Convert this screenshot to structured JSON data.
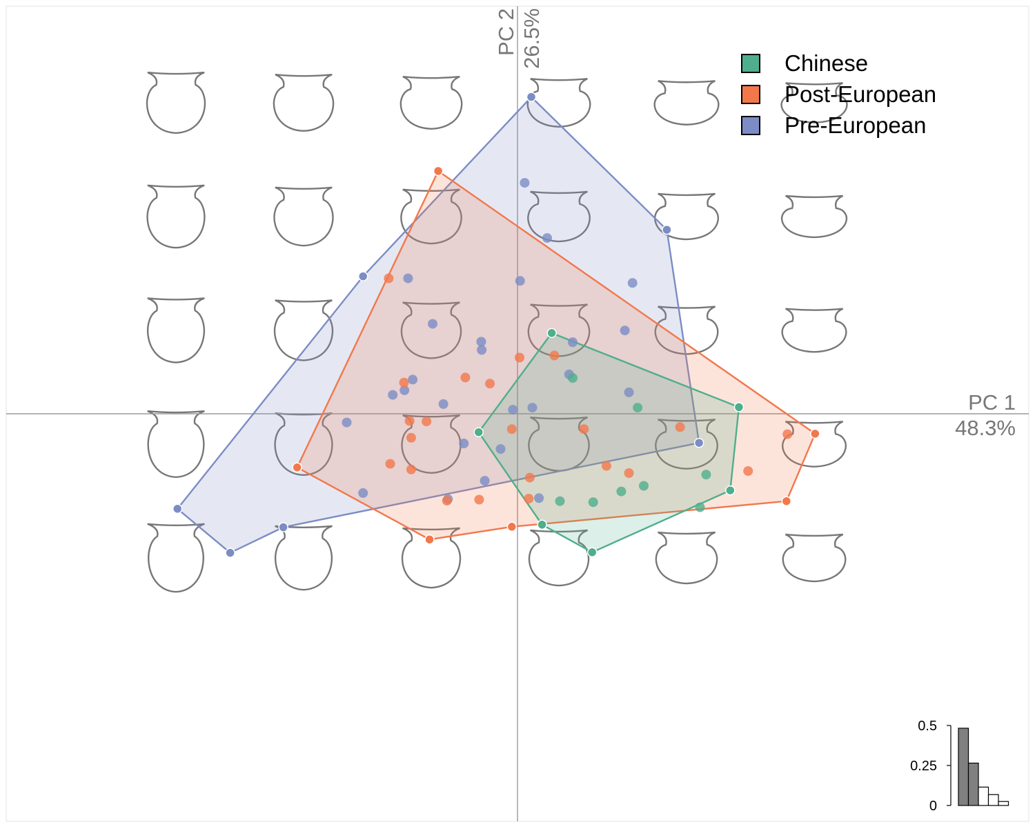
{
  "chart_data": {
    "type": "scatter",
    "title": "",
    "axes": {
      "x": {
        "label": "PC 1",
        "percent": "48.3%",
        "range": [
          -1.0,
          1.0
        ]
      },
      "y": {
        "label": "PC 2",
        "percent": "26.5%",
        "range": [
          -0.8,
          0.8
        ]
      }
    },
    "grid": false,
    "legend_position": "top-right",
    "colors": {
      "Chinese": "#4fae8c",
      "Post-European": "#f2784b",
      "Pre-European": "#7c8cc4",
      "axis": "#999999",
      "outline": "#777777"
    },
    "series": [
      {
        "name": "Chinese",
        "points": [
          [
            -0.076,
            -0.036
          ],
          [
            0.067,
            0.158
          ],
          [
            0.108,
            0.07
          ],
          [
            0.235,
            0.012
          ],
          [
            0.433,
            0.013
          ],
          [
            0.369,
            -0.119
          ],
          [
            0.416,
            -0.15
          ],
          [
            0.247,
            -0.141
          ],
          [
            0.203,
            -0.152
          ],
          [
            0.148,
            -0.173
          ],
          [
            0.083,
            -0.171
          ],
          [
            0.048,
            -0.217
          ],
          [
            0.146,
            -0.271
          ],
          [
            0.357,
            -0.183
          ]
        ],
        "hull": [
          [
            -0.076,
            -0.036
          ],
          [
            0.067,
            0.158
          ],
          [
            0.433,
            0.013
          ],
          [
            0.416,
            -0.15
          ],
          [
            0.146,
            -0.271
          ],
          [
            0.048,
            -0.217
          ]
        ]
      },
      {
        "name": "Post-European",
        "points": [
          [
            -0.155,
            0.475
          ],
          [
            -0.252,
            0.265
          ],
          [
            -0.222,
            0.061
          ],
          [
            -0.102,
            0.071
          ],
          [
            -0.054,
            0.059
          ],
          [
            0.004,
            0.11
          ],
          [
            0.072,
            0.114
          ],
          [
            -0.178,
            -0.015
          ],
          [
            -0.211,
            -0.014
          ],
          [
            -0.208,
            -0.047
          ],
          [
            -0.249,
            -0.098
          ],
          [
            -0.208,
            -0.109
          ],
          [
            -0.011,
            -0.03
          ],
          [
            0.13,
            -0.03
          ],
          [
            0.318,
            -0.026
          ],
          [
            0.174,
            -0.102
          ],
          [
            0.218,
            -0.116
          ],
          [
            0.451,
            -0.112
          ],
          [
            0.024,
            -0.125
          ],
          [
            0.022,
            -0.166
          ],
          [
            -0.138,
            -0.17
          ],
          [
            -0.075,
            -0.168
          ],
          [
            -0.172,
            -0.246
          ],
          [
            -0.011,
            -0.221
          ],
          [
            0.528,
            -0.04
          ],
          [
            0.526,
            -0.171
          ],
          [
            0.582,
            -0.039
          ],
          [
            -0.431,
            -0.105
          ]
        ],
        "hull": [
          [
            -0.155,
            0.475
          ],
          [
            0.582,
            -0.039
          ],
          [
            0.526,
            -0.171
          ],
          [
            -0.011,
            -0.221
          ],
          [
            -0.172,
            -0.246
          ],
          [
            -0.431,
            -0.105
          ]
        ]
      },
      {
        "name": "Pre-European",
        "points": [
          [
            0.027,
            0.62
          ],
          [
            0.014,
            0.452
          ],
          [
            0.058,
            0.344
          ],
          [
            0.292,
            0.36
          ],
          [
            0.225,
            0.256
          ],
          [
            -0.302,
            0.269
          ],
          [
            -0.214,
            0.265
          ],
          [
            0.005,
            0.26
          ],
          [
            0.21,
            0.163
          ],
          [
            0.108,
            0.14
          ],
          [
            -0.166,
            0.176
          ],
          [
            -0.071,
            0.141
          ],
          [
            -0.07,
            0.125
          ],
          [
            -0.205,
            0.067
          ],
          [
            -0.221,
            0.046
          ],
          [
            -0.244,
            0.037
          ],
          [
            -0.145,
            0.019
          ],
          [
            -0.009,
            0.008
          ],
          [
            0.029,
            0.012
          ],
          [
            0.101,
            0.077
          ],
          [
            0.218,
            0.042
          ],
          [
            -0.334,
            -0.017
          ],
          [
            -0.105,
            -0.058
          ],
          [
            -0.033,
            -0.069
          ],
          [
            0.355,
            -0.057
          ],
          [
            -0.064,
            -0.131
          ],
          [
            -0.302,
            -0.155
          ],
          [
            -0.136,
            -0.167
          ],
          [
            0.042,
            -0.165
          ],
          [
            -0.665,
            -0.186
          ],
          [
            -0.458,
            -0.222
          ],
          [
            -0.562,
            -0.272
          ]
        ],
        "hull": [
          [
            0.027,
            0.62
          ],
          [
            0.292,
            0.36
          ],
          [
            0.355,
            -0.057
          ],
          [
            -0.458,
            -0.222
          ],
          [
            -0.562,
            -0.272
          ],
          [
            -0.665,
            -0.186
          ],
          [
            -0.302,
            0.269
          ]
        ]
      }
    ],
    "scree": {
      "type": "bar",
      "ticks": [
        "0",
        "0.25",
        "0.5"
      ],
      "tick_values": [
        0,
        0.25,
        0.5
      ],
      "values": [
        0.483,
        0.265,
        0.115,
        0.068,
        0.025
      ],
      "highlighted_count": 2
    }
  }
}
